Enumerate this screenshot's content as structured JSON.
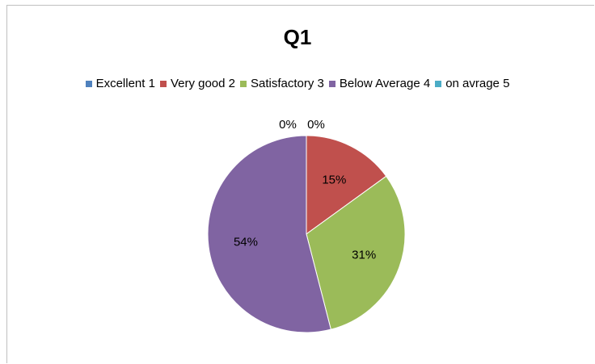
{
  "chart_data": {
    "type": "pie",
    "title": "Q1",
    "legend_position": "top",
    "categories": [
      "Excellent 1",
      "Very good 2",
      "Satisfactory 3",
      "Below Average 4",
      "on avrage 5"
    ],
    "values": [
      0,
      15,
      31,
      54,
      0
    ],
    "labels": [
      "0%",
      "15%",
      "31%",
      "54%",
      "0%"
    ],
    "colors": [
      "#4f81bd",
      "#c0504d",
      "#9bbb59",
      "#8064a2",
      "#4bacc6"
    ]
  }
}
